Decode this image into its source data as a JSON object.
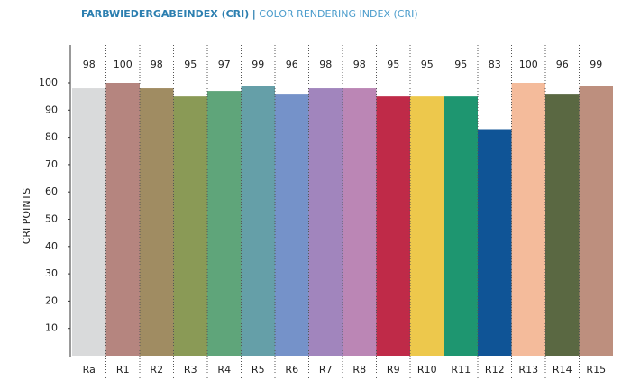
{
  "chart_data": {
    "type": "bar",
    "title": "FARBWIEDERGABEINDEX (CRI)",
    "title_separator": "|",
    "subtitle": "COLOR RENDERING INDEX (CRI)",
    "y_label": "CRI POINTS",
    "categories": [
      "Ra",
      "R1",
      "R2",
      "R3",
      "R4",
      "R5",
      "R6",
      "R7",
      "R8",
      "R9",
      "R10",
      "R11",
      "R12",
      "R13",
      "R14",
      "R15"
    ],
    "values": [
      98,
      100,
      98,
      95,
      97,
      99,
      96,
      98,
      98,
      95,
      95,
      95,
      83,
      100,
      96,
      99
    ],
    "colors": [
      "#d9dadb",
      "#b5857f",
      "#a08c62",
      "#8a9a56",
      "#5fa57a",
      "#659fa8",
      "#7592c9",
      "#a185bd",
      "#bb86b5",
      "#bf2a48",
      "#edc84c",
      "#1e9670",
      "#0f5496",
      "#f4bb9b",
      "#5a6842",
      "#bd8f7e"
    ],
    "ylim": [
      0,
      100
    ],
    "yticks": [
      10,
      20,
      30,
      40,
      50,
      60,
      70,
      80,
      90,
      100
    ],
    "grid": false
  }
}
